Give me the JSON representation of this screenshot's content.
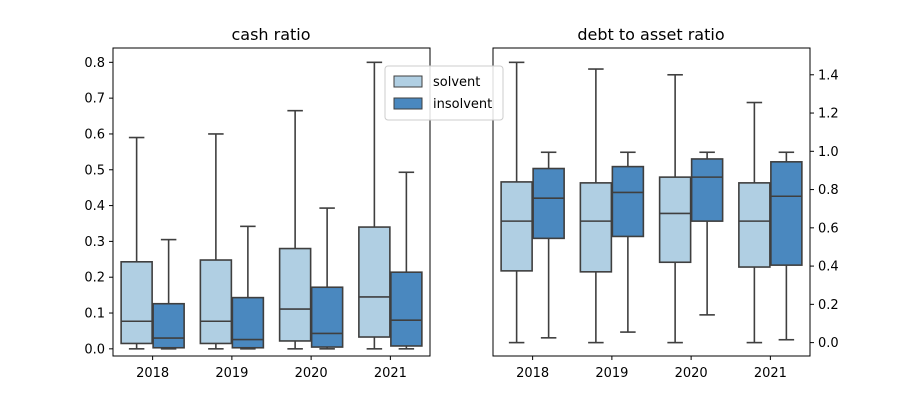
{
  "chart_data": [
    {
      "type": "box",
      "title": "cash ratio",
      "categories": [
        "2018",
        "2019",
        "2020",
        "2021"
      ],
      "ylim": [
        -0.02,
        0.84
      ],
      "y_ticks": [
        0.0,
        0.1,
        0.2,
        0.3,
        0.4,
        0.5,
        0.6,
        0.7,
        0.8
      ],
      "y_tick_labels": [
        "0.0",
        "0.1",
        "0.2",
        "0.3",
        "0.4",
        "0.5",
        "0.6",
        "0.7",
        "0.8"
      ],
      "y_axis_side": "left",
      "series": [
        {
          "name": "solvent",
          "color": "#b0cfe3",
          "boxes": [
            {
              "min": 0.0,
              "q1": 0.015,
              "median": 0.077,
              "q3": 0.243,
              "max": 0.59
            },
            {
              "min": 0.0,
              "q1": 0.015,
              "median": 0.077,
              "q3": 0.248,
              "max": 0.6
            },
            {
              "min": 0.0,
              "q1": 0.022,
              "median": 0.111,
              "q3": 0.28,
              "max": 0.665
            },
            {
              "min": 0.0,
              "q1": 0.033,
              "median": 0.145,
              "q3": 0.34,
              "max": 0.8
            }
          ]
        },
        {
          "name": "insolvent",
          "color": "#4a88bf",
          "boxes": [
            {
              "min": 0.0,
              "q1": 0.003,
              "median": 0.03,
              "q3": 0.126,
              "max": 0.305
            },
            {
              "min": 0.0,
              "q1": 0.003,
              "median": 0.026,
              "q3": 0.143,
              "max": 0.342
            },
            {
              "min": 0.0,
              "q1": 0.005,
              "median": 0.043,
              "q3": 0.172,
              "max": 0.393
            },
            {
              "min": 0.0,
              "q1": 0.008,
              "median": 0.08,
              "q3": 0.214,
              "max": 0.493
            }
          ]
        }
      ],
      "legend": {
        "placement": "top-right",
        "entries": [
          "solvent",
          "insolvent"
        ]
      },
      "grid": false
    },
    {
      "type": "box",
      "title": "debt to asset ratio",
      "categories": [
        "2018",
        "2019",
        "2020",
        "2021"
      ],
      "ylim": [
        -0.07,
        1.54
      ],
      "y_ticks": [
        0.0,
        0.2,
        0.4,
        0.6,
        0.8,
        1.0,
        1.2,
        1.4
      ],
      "y_tick_labels": [
        "0.0",
        "0.2",
        "0.4",
        "0.6",
        "0.8",
        "1.0",
        "1.2",
        "1.4"
      ],
      "y_axis_side": "right",
      "series": [
        {
          "name": "solvent",
          "color": "#b0cfe3",
          "boxes": [
            {
              "min": 0.0,
              "q1": 0.375,
              "median": 0.635,
              "q3": 0.84,
              "max": 1.465
            },
            {
              "min": 0.0,
              "q1": 0.37,
              "median": 0.635,
              "q3": 0.835,
              "max": 1.43
            },
            {
              "min": 0.0,
              "q1": 0.42,
              "median": 0.675,
              "q3": 0.865,
              "max": 1.4
            },
            {
              "min": 0.0,
              "q1": 0.395,
              "median": 0.635,
              "q3": 0.835,
              "max": 1.255
            }
          ]
        },
        {
          "name": "insolvent",
          "color": "#4a88bf",
          "boxes": [
            {
              "min": 0.025,
              "q1": 0.545,
              "median": 0.755,
              "q3": 0.91,
              "max": 0.995
            },
            {
              "min": 0.055,
              "q1": 0.555,
              "median": 0.785,
              "q3": 0.92,
              "max": 0.995
            },
            {
              "min": 0.145,
              "q1": 0.635,
              "median": 0.865,
              "q3": 0.96,
              "max": 0.995
            },
            {
              "min": 0.015,
              "q1": 0.405,
              "median": 0.765,
              "q3": 0.945,
              "max": 0.995
            }
          ]
        }
      ],
      "grid": false
    }
  ]
}
